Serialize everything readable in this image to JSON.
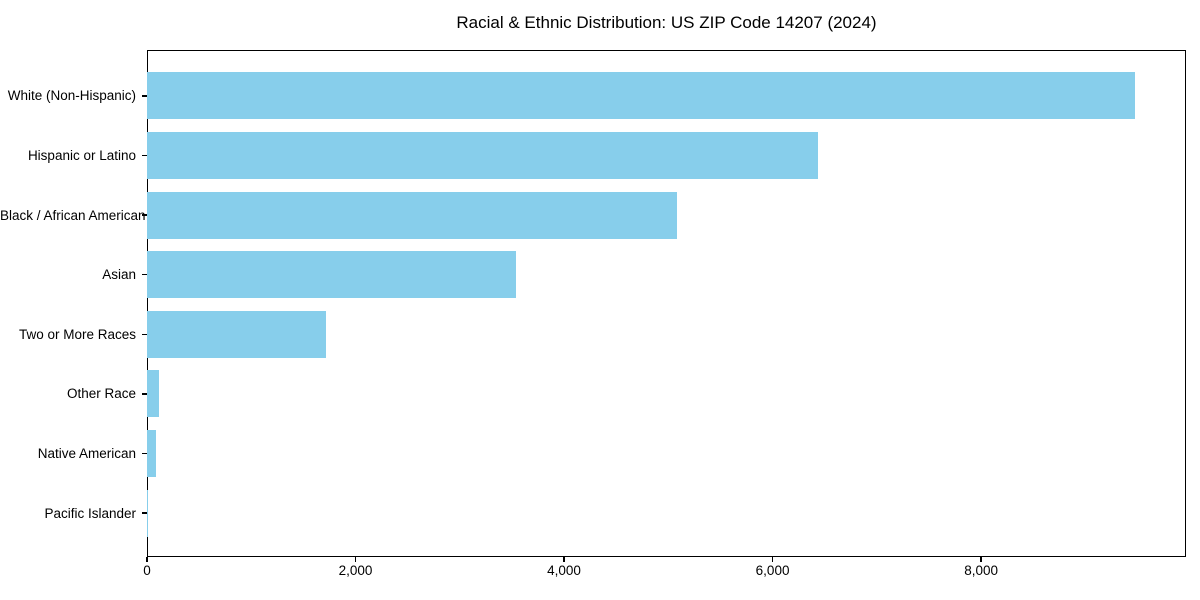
{
  "chart_data": {
    "type": "bar",
    "orientation": "horizontal",
    "title": "Racial & Ethnic Distribution: US ZIP Code 14207 (2024)",
    "categories": [
      "White (Non-Hispanic)",
      "Hispanic or Latino",
      "Black / African American",
      "Asian",
      "Two or More Races",
      "Other Race",
      "Native American",
      "Pacific Islander"
    ],
    "values": [
      9480,
      6440,
      5080,
      3540,
      1720,
      115,
      85,
      10
    ],
    "xlabel": "",
    "ylabel": "",
    "xlim": [
      0,
      9965
    ],
    "xticks": {
      "values": [
        0,
        2000,
        4000,
        6000,
        8000
      ],
      "labels": [
        "0",
        "2,000",
        "4,000",
        "6,000",
        "8,000"
      ]
    },
    "grid": false,
    "legend": null,
    "bar_color": "#87CEEB",
    "spine_color": "#000000",
    "background_color": "#ffffff"
  }
}
